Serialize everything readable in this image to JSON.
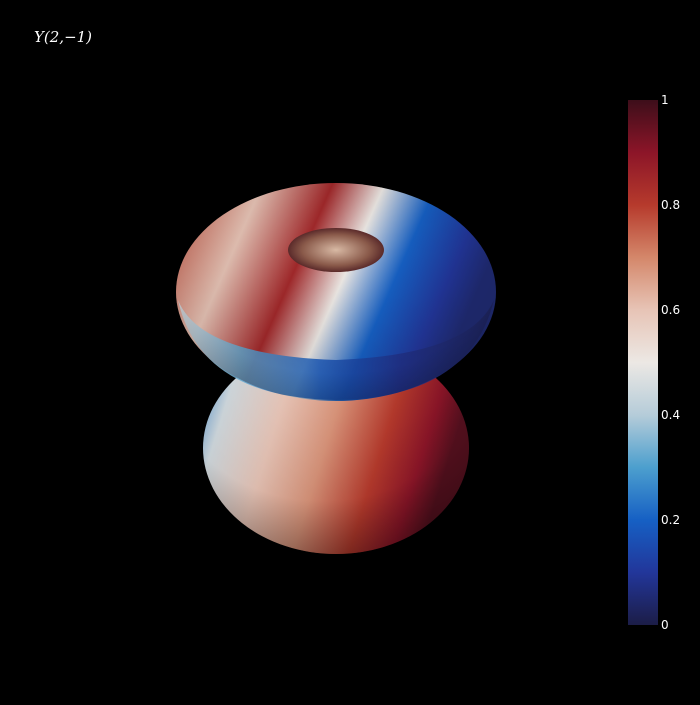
{
  "chart_data": {
    "type": "surface",
    "title": "Y(2,−1)",
    "colorscale": {
      "name": "balance",
      "range": [
        0,
        1
      ],
      "ticks": [
        {
          "value": 0,
          "label": "0"
        },
        {
          "value": 0.2,
          "label": "0.2"
        },
        {
          "value": 0.4,
          "label": "0.4"
        },
        {
          "value": 0.6,
          "label": "0.6"
        },
        {
          "value": 0.8,
          "label": "0.8"
        },
        {
          "value": 1,
          "label": "1"
        }
      ],
      "stops": [
        {
          "value": 0.0,
          "color": "#1c1d47"
        },
        {
          "value": 0.1,
          "color": "#22369a"
        },
        {
          "value": 0.2,
          "color": "#1660c4"
        },
        {
          "value": 0.3,
          "color": "#4c9fce"
        },
        {
          "value": 0.4,
          "color": "#b5ccd9"
        },
        {
          "value": 0.5,
          "color": "#ece8e4"
        },
        {
          "value": 0.6,
          "color": "#e7c4b6"
        },
        {
          "value": 0.7,
          "color": "#d4876a"
        },
        {
          "value": 0.8,
          "color": "#b63a2c"
        },
        {
          "value": 0.9,
          "color": "#8c1528"
        },
        {
          "value": 1.0,
          "color": "#3d0e1a"
        }
      ]
    },
    "background": "#000000"
  }
}
